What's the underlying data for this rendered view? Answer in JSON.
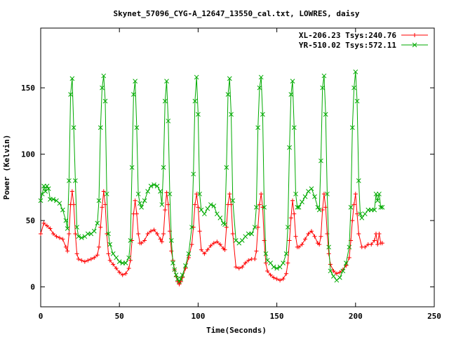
{
  "chart_data": {
    "type": "line",
    "title": "Skynet_57096_CYG-A_12647_13550_cal.txt, LOWRES, daisy",
    "xlabel": "Time(Seconds)",
    "ylabel": "Power (Kelvin)",
    "xlim": [
      0,
      250
    ],
    "ylim": [
      -15,
      195
    ],
    "xticks": [
      "0",
      "50",
      "100",
      "150",
      "200",
      "250"
    ],
    "yticks": [
      "0",
      "50",
      "100",
      "150"
    ],
    "grid": false,
    "legend_position": "top-right",
    "series": [
      {
        "name": "XL-206.23 Tsys:240.76",
        "color": "#ff0000",
        "marker": "plus",
        "points": [
          [
            0,
            40
          ],
          [
            2,
            48
          ],
          [
            4,
            46
          ],
          [
            6,
            44
          ],
          [
            8,
            40
          ],
          [
            10,
            38
          ],
          [
            12,
            37
          ],
          [
            14,
            36
          ],
          [
            16,
            30
          ],
          [
            17,
            27
          ],
          [
            18,
            40
          ],
          [
            19,
            62
          ],
          [
            20,
            72
          ],
          [
            21,
            62
          ],
          [
            22,
            40
          ],
          [
            23,
            25
          ],
          [
            24,
            21
          ],
          [
            26,
            20
          ],
          [
            28,
            19
          ],
          [
            30,
            20
          ],
          [
            32,
            21
          ],
          [
            34,
            22
          ],
          [
            36,
            24
          ],
          [
            37,
            30
          ],
          [
            38,
            45
          ],
          [
            39,
            60
          ],
          [
            40,
            72
          ],
          [
            41,
            62
          ],
          [
            42,
            40
          ],
          [
            43,
            25
          ],
          [
            44,
            20
          ],
          [
            46,
            17
          ],
          [
            48,
            14
          ],
          [
            50,
            11
          ],
          [
            52,
            9
          ],
          [
            54,
            10
          ],
          [
            56,
            14
          ],
          [
            57,
            20
          ],
          [
            58,
            35
          ],
          [
            59,
            55
          ],
          [
            60,
            65
          ],
          [
            61,
            55
          ],
          [
            62,
            40
          ],
          [
            63,
            33
          ],
          [
            64,
            33
          ],
          [
            66,
            35
          ],
          [
            68,
            40
          ],
          [
            70,
            42
          ],
          [
            72,
            43
          ],
          [
            74,
            40
          ],
          [
            76,
            36
          ],
          [
            77,
            34
          ],
          [
            78,
            40
          ],
          [
            79,
            58
          ],
          [
            80,
            71
          ],
          [
            81,
            62
          ],
          [
            82,
            42
          ],
          [
            83,
            27
          ],
          [
            84,
            20
          ],
          [
            85,
            13
          ],
          [
            86,
            8
          ],
          [
            87,
            4
          ],
          [
            88,
            2
          ],
          [
            89,
            4
          ],
          [
            90,
            7
          ],
          [
            92,
            14
          ],
          [
            94,
            22
          ],
          [
            96,
            32
          ],
          [
            97,
            45
          ],
          [
            98,
            62
          ],
          [
            99,
            70
          ],
          [
            100,
            60
          ],
          [
            101,
            42
          ],
          [
            102,
            28
          ],
          [
            104,
            25
          ],
          [
            106,
            28
          ],
          [
            108,
            31
          ],
          [
            110,
            33
          ],
          [
            112,
            34
          ],
          [
            114,
            32
          ],
          [
            116,
            29
          ],
          [
            117,
            28
          ],
          [
            118,
            45
          ],
          [
            119,
            62
          ],
          [
            120,
            70
          ],
          [
            121,
            62
          ],
          [
            122,
            40
          ],
          [
            124,
            15
          ],
          [
            126,
            14
          ],
          [
            128,
            15
          ],
          [
            130,
            18
          ],
          [
            132,
            20
          ],
          [
            134,
            21
          ],
          [
            136,
            21
          ],
          [
            137,
            27
          ],
          [
            138,
            45
          ],
          [
            139,
            62
          ],
          [
            140,
            70
          ],
          [
            141,
            60
          ],
          [
            142,
            35
          ],
          [
            143,
            18
          ],
          [
            144,
            12
          ],
          [
            146,
            9
          ],
          [
            148,
            7
          ],
          [
            150,
            6
          ],
          [
            152,
            5
          ],
          [
            154,
            6
          ],
          [
            156,
            10
          ],
          [
            157,
            18
          ],
          [
            158,
            35
          ],
          [
            159,
            52
          ],
          [
            160,
            65
          ],
          [
            161,
            55
          ],
          [
            162,
            38
          ],
          [
            163,
            30
          ],
          [
            164,
            30
          ],
          [
            166,
            32
          ],
          [
            168,
            36
          ],
          [
            170,
            40
          ],
          [
            172,
            42
          ],
          [
            174,
            38
          ],
          [
            176,
            33
          ],
          [
            177,
            32
          ],
          [
            178,
            38
          ],
          [
            179,
            58
          ],
          [
            180,
            70
          ],
          [
            181,
            60
          ],
          [
            182,
            40
          ],
          [
            183,
            25
          ],
          [
            184,
            17
          ],
          [
            186,
            12
          ],
          [
            188,
            10
          ],
          [
            190,
            11
          ],
          [
            192,
            13
          ],
          [
            194,
            16
          ],
          [
            196,
            22
          ],
          [
            197,
            35
          ],
          [
            198,
            50
          ],
          [
            199,
            62
          ],
          [
            200,
            70
          ],
          [
            201,
            55
          ],
          [
            202,
            40
          ],
          [
            204,
            30
          ],
          [
            206,
            30
          ],
          [
            208,
            32
          ],
          [
            210,
            32
          ],
          [
            212,
            35
          ],
          [
            213,
            40
          ],
          [
            214,
            32
          ],
          [
            215,
            40
          ],
          [
            216,
            33
          ],
          [
            217,
            33
          ]
        ]
      },
      {
        "name": "YR-510.02 Tsys:572.11",
        "color": "#00aa00",
        "marker": "cross",
        "points": [
          [
            0,
            65
          ],
          [
            1,
            70
          ],
          [
            2,
            76
          ],
          [
            3,
            72
          ],
          [
            4,
            76
          ],
          [
            5,
            74
          ],
          [
            6,
            66
          ],
          [
            8,
            66
          ],
          [
            10,
            65
          ],
          [
            12,
            63
          ],
          [
            14,
            58
          ],
          [
            16,
            50
          ],
          [
            17,
            44
          ],
          [
            18,
            80
          ],
          [
            19,
            145
          ],
          [
            20,
            157
          ],
          [
            21,
            120
          ],
          [
            22,
            80
          ],
          [
            23,
            45
          ],
          [
            24,
            38
          ],
          [
            26,
            37
          ],
          [
            28,
            38
          ],
          [
            30,
            40
          ],
          [
            32,
            40
          ],
          [
            34,
            42
          ],
          [
            36,
            48
          ],
          [
            37,
            65
          ],
          [
            38,
            120
          ],
          [
            39,
            150
          ],
          [
            40,
            159
          ],
          [
            41,
            140
          ],
          [
            42,
            70
          ],
          [
            43,
            40
          ],
          [
            44,
            32
          ],
          [
            46,
            25
          ],
          [
            48,
            22
          ],
          [
            50,
            19
          ],
          [
            52,
            18
          ],
          [
            54,
            18
          ],
          [
            56,
            22
          ],
          [
            57,
            35
          ],
          [
            58,
            90
          ],
          [
            59,
            145
          ],
          [
            60,
            155
          ],
          [
            61,
            120
          ],
          [
            62,
            70
          ],
          [
            63,
            63
          ],
          [
            64,
            60
          ],
          [
            66,
            65
          ],
          [
            68,
            72
          ],
          [
            70,
            76
          ],
          [
            72,
            77
          ],
          [
            74,
            76
          ],
          [
            76,
            72
          ],
          [
            77,
            62
          ],
          [
            78,
            90
          ],
          [
            79,
            140
          ],
          [
            80,
            155
          ],
          [
            81,
            125
          ],
          [
            82,
            70
          ],
          [
            83,
            35
          ],
          [
            84,
            18
          ],
          [
            85,
            13
          ],
          [
            86,
            9
          ],
          [
            87,
            6
          ],
          [
            88,
            4
          ],
          [
            89,
            6
          ],
          [
            90,
            9
          ],
          [
            92,
            16
          ],
          [
            94,
            25
          ],
          [
            96,
            45
          ],
          [
            97,
            85
          ],
          [
            98,
            140
          ],
          [
            99,
            158
          ],
          [
            100,
            130
          ],
          [
            101,
            70
          ],
          [
            102,
            58
          ],
          [
            104,
            55
          ],
          [
            106,
            59
          ],
          [
            108,
            62
          ],
          [
            110,
            61
          ],
          [
            112,
            55
          ],
          [
            114,
            52
          ],
          [
            116,
            48
          ],
          [
            117,
            47
          ],
          [
            118,
            90
          ],
          [
            119,
            145
          ],
          [
            120,
            157
          ],
          [
            121,
            130
          ],
          [
            122,
            65
          ],
          [
            124,
            35
          ],
          [
            126,
            33
          ],
          [
            128,
            35
          ],
          [
            130,
            38
          ],
          [
            132,
            40
          ],
          [
            134,
            40
          ],
          [
            136,
            45
          ],
          [
            137,
            60
          ],
          [
            138,
            120
          ],
          [
            139,
            150
          ],
          [
            140,
            158
          ],
          [
            141,
            130
          ],
          [
            142,
            60
          ],
          [
            143,
            25
          ],
          [
            144,
            20
          ],
          [
            146,
            18
          ],
          [
            148,
            15
          ],
          [
            150,
            14
          ],
          [
            152,
            15
          ],
          [
            154,
            18
          ],
          [
            156,
            25
          ],
          [
            157,
            45
          ],
          [
            158,
            105
          ],
          [
            159,
            145
          ],
          [
            160,
            155
          ],
          [
            161,
            120
          ],
          [
            162,
            70
          ],
          [
            163,
            60
          ],
          [
            164,
            60
          ],
          [
            166,
            64
          ],
          [
            168,
            68
          ],
          [
            170,
            72
          ],
          [
            172,
            74
          ],
          [
            174,
            68
          ],
          [
            176,
            60
          ],
          [
            177,
            58
          ],
          [
            178,
            95
          ],
          [
            179,
            150
          ],
          [
            180,
            159
          ],
          [
            181,
            130
          ],
          [
            182,
            70
          ],
          [
            183,
            30
          ],
          [
            184,
            12
          ],
          [
            186,
            8
          ],
          [
            188,
            5
          ],
          [
            190,
            7
          ],
          [
            192,
            12
          ],
          [
            194,
            18
          ],
          [
            196,
            30
          ],
          [
            197,
            60
          ],
          [
            198,
            120
          ],
          [
            199,
            150
          ],
          [
            200,
            162
          ],
          [
            201,
            140
          ],
          [
            202,
            80
          ],
          [
            203,
            55
          ],
          [
            204,
            52
          ],
          [
            206,
            55
          ],
          [
            208,
            58
          ],
          [
            210,
            58
          ],
          [
            212,
            58
          ],
          [
            213,
            70
          ],
          [
            214,
            65
          ],
          [
            215,
            70
          ],
          [
            216,
            60
          ],
          [
            217,
            60
          ]
        ]
      }
    ]
  }
}
